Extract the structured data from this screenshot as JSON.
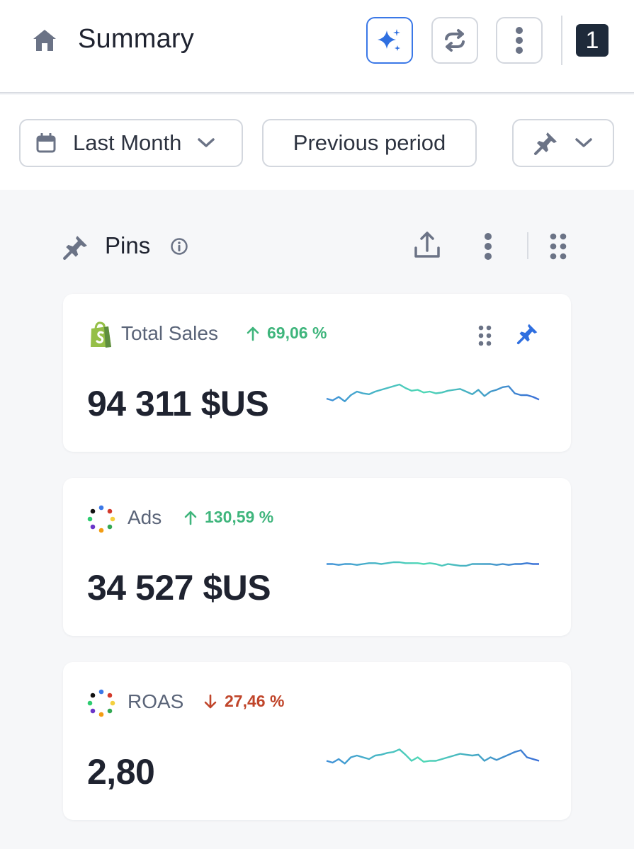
{
  "header": {
    "title": "Summary",
    "icons": {
      "home": "home-icon",
      "ai": "sparkles-icon",
      "refresh": "refresh-icon",
      "more": "more-vertical-icon"
    },
    "badge_count": "1",
    "accent_color": "#3b78e7"
  },
  "filters": {
    "date_range": {
      "label": "Last Month",
      "icon": "calendar-icon"
    },
    "comparison": {
      "label": "Previous period"
    },
    "pin_select": {
      "icon": "pin-icon"
    }
  },
  "section": {
    "title": "Pins",
    "icons": [
      "pin-icon",
      "info-icon",
      "export-icon",
      "more-vertical-icon",
      "grid-drag-icon"
    ]
  },
  "cards": [
    {
      "title": "Total Sales",
      "source_icon": "shopify-icon",
      "trend_direction": "up",
      "trend_value": "69,06 %",
      "value": "94 311 $US",
      "pinned": true,
      "sparkline": [
        20,
        18,
        22,
        17,
        24,
        28,
        26,
        25,
        28,
        30,
        32,
        34,
        36,
        32,
        29,
        30,
        27,
        28,
        26,
        27,
        29,
        30,
        31,
        28,
        25,
        30,
        23,
        28,
        30,
        33,
        34,
        26,
        24,
        24,
        22,
        19
      ]
    },
    {
      "title": "Ads",
      "source_icon": "ads-dots-icon",
      "trend_direction": "up",
      "trend_value": "130,59 %",
      "value": "34 527 $US",
      "sparkline": [
        30,
        30,
        29,
        30,
        30,
        29,
        30,
        31,
        31,
        30,
        31,
        32,
        32,
        31,
        31,
        31,
        30,
        31,
        30,
        28,
        30,
        29,
        28,
        28,
        30,
        30,
        30,
        30,
        29,
        30,
        29,
        30,
        30,
        31,
        30,
        30
      ]
    },
    {
      "title": "ROAS",
      "source_icon": "ads-dots-icon",
      "trend_direction": "down",
      "trend_value": "27,46 %",
      "value": "2,80",
      "sparkline": [
        22,
        20,
        24,
        19,
        26,
        28,
        26,
        24,
        28,
        29,
        31,
        32,
        35,
        29,
        22,
        26,
        21,
        22,
        22,
        24,
        26,
        28,
        30,
        29,
        28,
        29,
        22,
        26,
        23,
        26,
        29,
        32,
        34,
        26,
        24,
        22
      ]
    }
  ]
}
